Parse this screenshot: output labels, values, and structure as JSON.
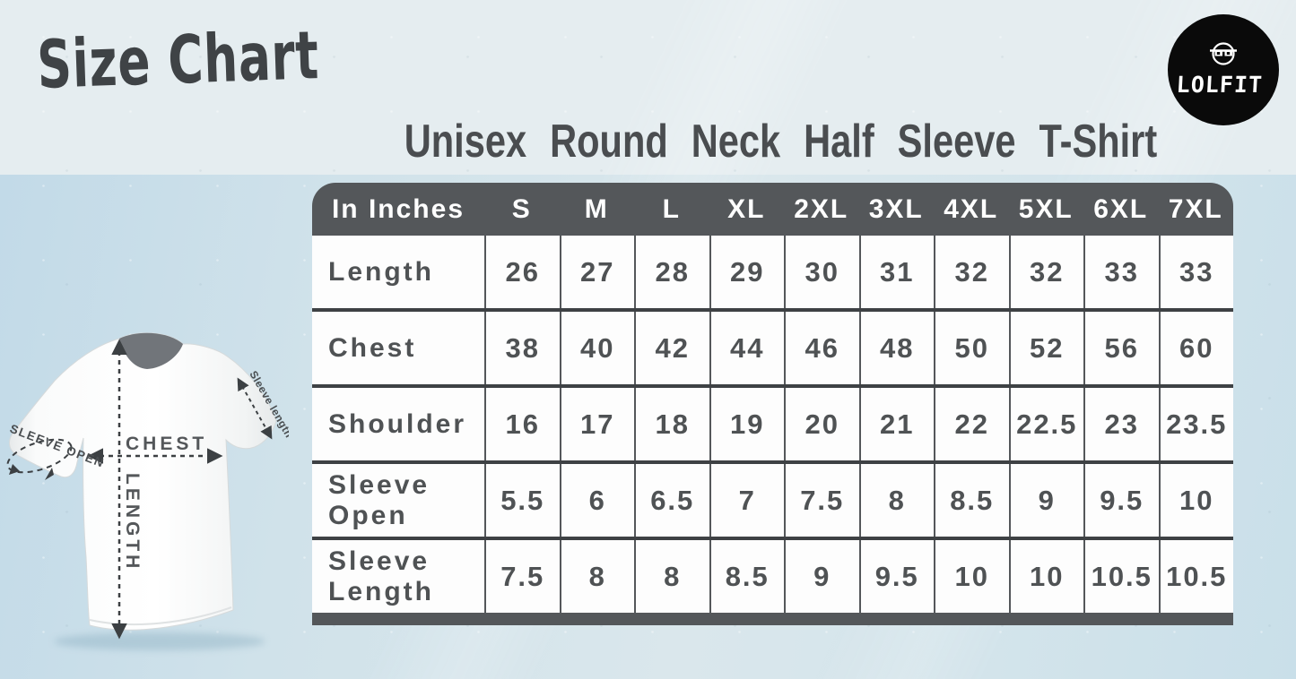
{
  "header": {
    "page_title": "Size Chart",
    "logo_text": "LOLFIT"
  },
  "diagram": {
    "chest_label": "CHEST",
    "length_label": "LENGTH",
    "sleeve_open_label": "SLEEVE OPEN",
    "sleeve_length_label": "Sleeve length"
  },
  "colors": {
    "table_header_bg": "#54575a",
    "table_text": "#4f5254",
    "panel_blue": "#c9dfe9",
    "logo_bg": "#0a0a0a",
    "title_text": "#4a4d50"
  },
  "chart_data": {
    "type": "table",
    "title": "Unisex Round Neck Half Sleeve T-Shirt",
    "unit_header": "In Inches",
    "columns": [
      "S",
      "M",
      "L",
      "XL",
      "2XL",
      "3XL",
      "4XL",
      "5XL",
      "6XL",
      "7XL"
    ],
    "rows": [
      {
        "label": "Length",
        "values": [
          "26",
          "27",
          "28",
          "29",
          "30",
          "31",
          "32",
          "32",
          "33",
          "33"
        ]
      },
      {
        "label": "Chest",
        "values": [
          "38",
          "40",
          "42",
          "44",
          "46",
          "48",
          "50",
          "52",
          "56",
          "60"
        ]
      },
      {
        "label": "Shoulder",
        "values": [
          "16",
          "17",
          "18",
          "19",
          "20",
          "21",
          "22",
          "22.5",
          "23",
          "23.5"
        ]
      },
      {
        "label": "Sleeve Open",
        "values": [
          "5.5",
          "6",
          "6.5",
          "7",
          "7.5",
          "8",
          "8.5",
          "9",
          "9.5",
          "10"
        ]
      },
      {
        "label": "Sleeve Length",
        "values": [
          "7.5",
          "8",
          "8",
          "8.5",
          "9",
          "9.5",
          "10",
          "10",
          "10.5",
          "10.5"
        ]
      }
    ]
  }
}
